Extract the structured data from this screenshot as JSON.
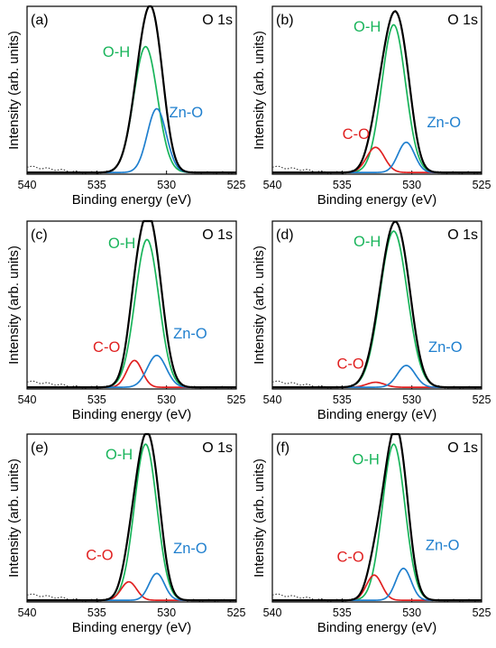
{
  "colors": {
    "envelope": "#000000",
    "oh": "#18b45a",
    "zno": "#1f7fce",
    "co": "#e02020",
    "raw": "#333333"
  },
  "chart_data": [
    {
      "panel": "(a)",
      "title": "O 1s",
      "type": "line",
      "xlabel": "Binding energy (eV)",
      "ylabel": "Intensity (arb. units)",
      "xlim": [
        540,
        525
      ],
      "xticks": [
        540,
        535,
        530,
        525
      ],
      "ylim": [
        0,
        100
      ],
      "series": [
        {
          "name": "O-H",
          "center": 531.5,
          "height": 75,
          "fwhm": 2.0
        },
        {
          "name": "Zn-O",
          "center": 530.7,
          "height": 38,
          "fwhm": 1.6
        }
      ],
      "labels": [
        {
          "text": "O-H",
          "series": "O-H",
          "x": 533.6,
          "y": 70
        },
        {
          "text": "Zn-O",
          "series": "Zn-O",
          "x": 528.6,
          "y": 34
        }
      ]
    },
    {
      "panel": "(b)",
      "title": "O 1s",
      "type": "line",
      "xlabel": "Binding energy (eV)",
      "ylabel": "Intensity (arb. units)",
      "xlim": [
        540,
        525
      ],
      "xticks": [
        540,
        535,
        530,
        525
      ],
      "ylim": [
        0,
        100
      ],
      "series": [
        {
          "name": "O-H",
          "center": 531.3,
          "height": 88,
          "fwhm": 2.0
        },
        {
          "name": "C-O",
          "center": 532.6,
          "height": 15,
          "fwhm": 1.5
        },
        {
          "name": "Zn-O",
          "center": 530.4,
          "height": 18,
          "fwhm": 1.4
        }
      ],
      "labels": [
        {
          "text": "O-H",
          "series": "O-H",
          "x": 533.2,
          "y": 85
        },
        {
          "text": "C-O",
          "series": "C-O",
          "x": 534.0,
          "y": 21
        },
        {
          "text": "Zn-O",
          "series": "Zn-O",
          "x": 527.7,
          "y": 28
        }
      ]
    },
    {
      "panel": "(c)",
      "title": "O 1s",
      "type": "line",
      "xlabel": "Binding energy (eV)",
      "ylabel": "Intensity (arb. units)",
      "xlim": [
        540,
        525
      ],
      "xticks": [
        540,
        535,
        530,
        525
      ],
      "ylim": [
        0,
        100
      ],
      "series": [
        {
          "name": "O-H",
          "center": 531.4,
          "height": 88,
          "fwhm": 2.0
        },
        {
          "name": "C-O",
          "center": 532.3,
          "height": 16,
          "fwhm": 1.3
        },
        {
          "name": "Zn-O",
          "center": 530.7,
          "height": 19,
          "fwhm": 1.6
        }
      ],
      "labels": [
        {
          "text": "O-H",
          "series": "O-H",
          "x": 533.2,
          "y": 84
        },
        {
          "text": "C-O",
          "series": "C-O",
          "x": 534.3,
          "y": 22
        },
        {
          "text": "Zn-O",
          "series": "Zn-O",
          "x": 528.3,
          "y": 30
        }
      ]
    },
    {
      "panel": "(d)",
      "title": "O 1s",
      "type": "line",
      "xlabel": "Binding energy (eV)",
      "ylabel": "Intensity (arb. units)",
      "xlim": [
        540,
        525
      ],
      "xticks": [
        540,
        535,
        530,
        525
      ],
      "ylim": [
        0,
        100
      ],
      "series": [
        {
          "name": "O-H",
          "center": 531.3,
          "height": 93,
          "fwhm": 2.3
        },
        {
          "name": "C-O",
          "center": 532.6,
          "height": 3,
          "fwhm": 1.5
        },
        {
          "name": "Zn-O",
          "center": 530.4,
          "height": 13,
          "fwhm": 1.5
        }
      ],
      "labels": [
        {
          "text": "O-H",
          "series": "O-H",
          "x": 533.2,
          "y": 85
        },
        {
          "text": "C-O",
          "series": "C-O",
          "x": 534.4,
          "y": 12
        },
        {
          "text": "Zn-O",
          "series": "Zn-O",
          "x": 527.6,
          "y": 22
        }
      ]
    },
    {
      "panel": "(e)",
      "title": "O 1s",
      "type": "line",
      "xlabel": "Binding energy (eV)",
      "ylabel": "Intensity (arb. units)",
      "xlim": [
        540,
        525
      ],
      "xticks": [
        540,
        535,
        530,
        525
      ],
      "ylim": [
        0,
        100
      ],
      "series": [
        {
          "name": "O-H",
          "center": 531.5,
          "height": 93,
          "fwhm": 1.9
        },
        {
          "name": "C-O",
          "center": 532.7,
          "height": 11,
          "fwhm": 1.3
        },
        {
          "name": "Zn-O",
          "center": 530.7,
          "height": 16,
          "fwhm": 1.3
        }
      ],
      "labels": [
        {
          "text": "O-H",
          "series": "O-H",
          "x": 533.4,
          "y": 85
        },
        {
          "text": "C-O",
          "series": "C-O",
          "x": 534.8,
          "y": 25
        },
        {
          "text": "Zn-O",
          "series": "Zn-O",
          "x": 528.3,
          "y": 29
        }
      ]
    },
    {
      "panel": "(f)",
      "title": "O 1s",
      "type": "line",
      "xlabel": "Binding energy (eV)",
      "ylabel": "Intensity (arb. units)",
      "xlim": [
        540,
        525
      ],
      "xticks": [
        540,
        535,
        530,
        525
      ],
      "ylim": [
        0,
        100
      ],
      "series": [
        {
          "name": "O-H",
          "center": 531.3,
          "height": 93,
          "fwhm": 1.9
        },
        {
          "name": "C-O",
          "center": 532.7,
          "height": 15,
          "fwhm": 1.3
        },
        {
          "name": "Zn-O",
          "center": 530.6,
          "height": 19,
          "fwhm": 1.3
        }
      ],
      "labels": [
        {
          "text": "O-H",
          "series": "O-H",
          "x": 533.3,
          "y": 82
        },
        {
          "text": "C-O",
          "series": "C-O",
          "x": 534.4,
          "y": 24
        },
        {
          "text": "Zn-O",
          "series": "Zn-O",
          "x": 527.8,
          "y": 31
        }
      ]
    }
  ]
}
